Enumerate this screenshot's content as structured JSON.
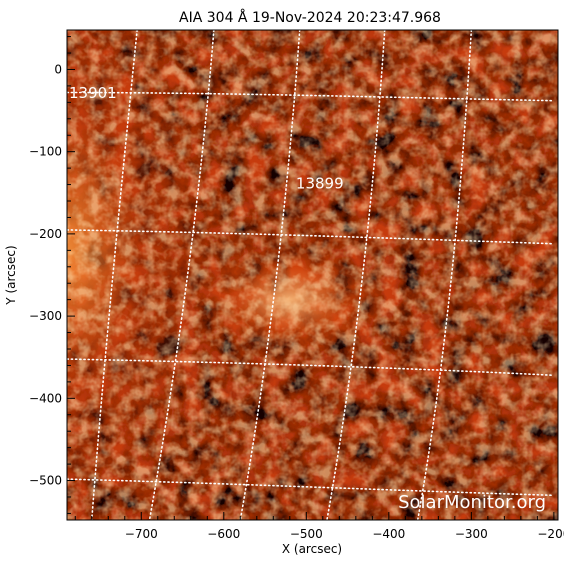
{
  "title": "AIA 304 Å 19-Nov-2024 20:23:47.968",
  "x_axis": {
    "label": "X (arcsec)",
    "range": [
      -790,
      -195
    ],
    "ticks": [
      {
        "value": -700,
        "label": "−700"
      },
      {
        "value": -600,
        "label": "−600"
      },
      {
        "value": -500,
        "label": "−500"
      },
      {
        "value": -400,
        "label": "−400"
      },
      {
        "value": -300,
        "label": "−300"
      },
      {
        "value": -200,
        "label": "−200"
      }
    ]
  },
  "y_axis": {
    "label": "Y (arcsec)",
    "range": [
      -548,
      48
    ],
    "ticks": [
      {
        "value": 0,
        "label": "0"
      },
      {
        "value": -100,
        "label": "−100"
      },
      {
        "value": -200,
        "label": "−200"
      },
      {
        "value": -300,
        "label": "−300"
      },
      {
        "value": -400,
        "label": "−400"
      },
      {
        "value": -500,
        "label": "−500"
      }
    ]
  },
  "regions": [
    {
      "number": "13901",
      "x": -790,
      "y": -35
    },
    {
      "number": "13899",
      "x": -515,
      "y": -145
    }
  ],
  "watermark": "SolarMonitor.org",
  "colors": {
    "background": "#ffffff",
    "image_dark": "#120000",
    "emission_low": "#7a1500",
    "emission_mid": "#d8480c",
    "emission_high": "#ffb870",
    "grid": "#ffffff"
  }
}
